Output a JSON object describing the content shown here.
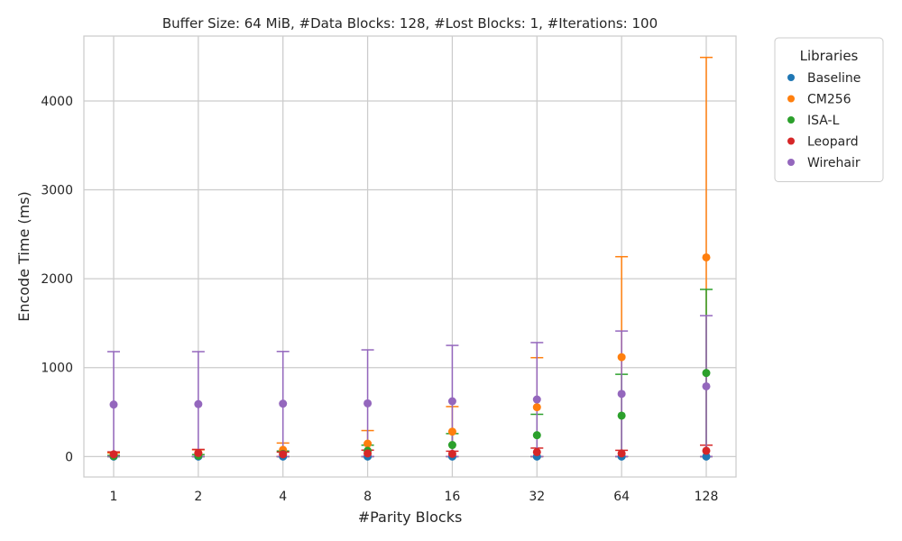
{
  "chart_data": {
    "type": "scatter",
    "title": "Buffer Size: 64 MiB, #Data Blocks: 128, #Lost Blocks: 1, #Iterations: 100",
    "xlabel": "#Parity Blocks",
    "ylabel": "Encode Time (ms)",
    "categories": [
      "1",
      "2",
      "4",
      "8",
      "16",
      "32",
      "64",
      "128"
    ],
    "ylim": [
      -230,
      4730
    ],
    "yticks": [
      0,
      1000,
      2000,
      3000,
      4000
    ],
    "grid": true,
    "legend": {
      "title": "Libraries",
      "placement": "outside-top-right"
    },
    "series": [
      {
        "name": "Baseline",
        "color": "#1f77b4",
        "values": [
          0,
          0,
          0,
          0,
          0,
          0,
          0,
          0
        ],
        "err_low": [
          0,
          0,
          0,
          0,
          0,
          0,
          0,
          0
        ],
        "err_high": [
          0,
          0,
          0,
          0,
          0,
          0,
          0,
          0
        ]
      },
      {
        "name": "CM256",
        "color": "#ff7f0e",
        "values": [
          20,
          38,
          75,
          145,
          280,
          555,
          1118,
          2240
        ],
        "err_low": [
          0,
          0,
          0,
          0,
          0,
          0,
          0,
          0
        ],
        "err_high": [
          40,
          76,
          152,
          292,
          562,
          1112,
          2248,
          4490
        ]
      },
      {
        "name": "ISA-L",
        "color": "#2ca02c",
        "values": [
          5,
          10,
          30,
          65,
          130,
          240,
          460,
          940
        ],
        "err_low": [
          0,
          0,
          0,
          0,
          0,
          0,
          0,
          0
        ],
        "err_high": [
          12,
          22,
          62,
          128,
          258,
          475,
          925,
          1880
        ]
      },
      {
        "name": "Leopard",
        "color": "#d62728",
        "values": [
          25,
          40,
          25,
          35,
          30,
          50,
          35,
          65
        ],
        "err_low": [
          0,
          0,
          0,
          0,
          0,
          0,
          0,
          0
        ],
        "err_high": [
          52,
          80,
          50,
          72,
          60,
          95,
          70,
          128
        ]
      },
      {
        "name": "Wirehair",
        "color": "#9467bd",
        "values": [
          585,
          590,
          595,
          598,
          622,
          642,
          705,
          790
        ],
        "err_low": [
          0,
          0,
          0,
          0,
          0,
          0,
          0,
          0
        ],
        "err_high": [
          1180,
          1180,
          1182,
          1200,
          1250,
          1282,
          1412,
          1585
        ]
      }
    ]
  }
}
